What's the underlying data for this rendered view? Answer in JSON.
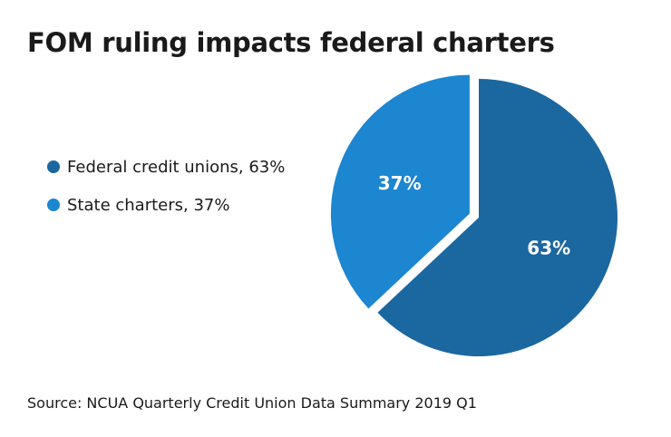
{
  "chart_data": {
    "type": "pie",
    "title": "FOM ruling impacts federal charters",
    "categories": [
      "Federal credit unions",
      "State charters"
    ],
    "values": [
      63,
      37
    ],
    "data_labels": [
      "63%",
      "37%"
    ],
    "colors": [
      "#1b67a0",
      "#1c86d1"
    ],
    "exploded": [
      false,
      true
    ],
    "start": "top",
    "direction": "clockwise",
    "legend": {
      "position": "left",
      "entries": [
        "Federal credit unions, 63%",
        "State charters, 37%"
      ]
    },
    "source": "Source: NCUA Quarterly Credit Union Data Summary 2019 Q1"
  }
}
